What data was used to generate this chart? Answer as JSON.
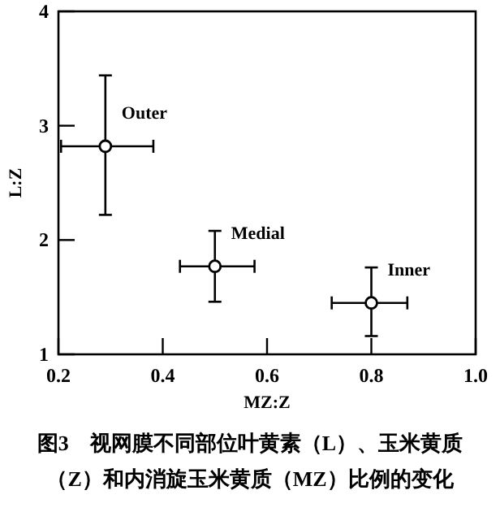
{
  "chart_data": {
    "type": "scatter",
    "title": "图3　视网膜不同部位叶黄素（L）、玉米黄质（Z）和内消旋玉米黄质（MZ）比例的变化",
    "xlabel": "MZ:Z",
    "ylabel": "L:Z",
    "x": [
      0.29,
      0.5,
      0.8
    ],
    "series": [
      {
        "color": "#000000",
        "values": [
          2.82,
          1.77,
          1.45
        ],
        "errors": [
          [
            2.22,
            3.44
          ],
          [
            1.46,
            2.08
          ],
          [
            1.16,
            1.76
          ]
        ],
        "xerrors": [
          [
            0.205,
            0.382
          ],
          [
            0.433,
            0.576
          ],
          [
            0.724,
            0.869
          ]
        ]
      }
    ],
    "annotations": [
      {
        "text": "Outer",
        "x": 0.29,
        "y": 2.82
      },
      {
        "text": "Medial",
        "x": 0.5,
        "y": 1.77
      },
      {
        "text": "Inner",
        "x": 0.8,
        "y": 1.45
      }
    ],
    "xlim": [
      0.2,
      1.0
    ],
    "ylim": [
      1,
      4
    ],
    "xticks": [
      0.2,
      0.4,
      0.6,
      0.8,
      {
        "value": 1,
        "label": "1.0"
      }
    ],
    "yticks": [
      1,
      2,
      3,
      4
    ],
    "grid": false,
    "marker": "circle"
  }
}
